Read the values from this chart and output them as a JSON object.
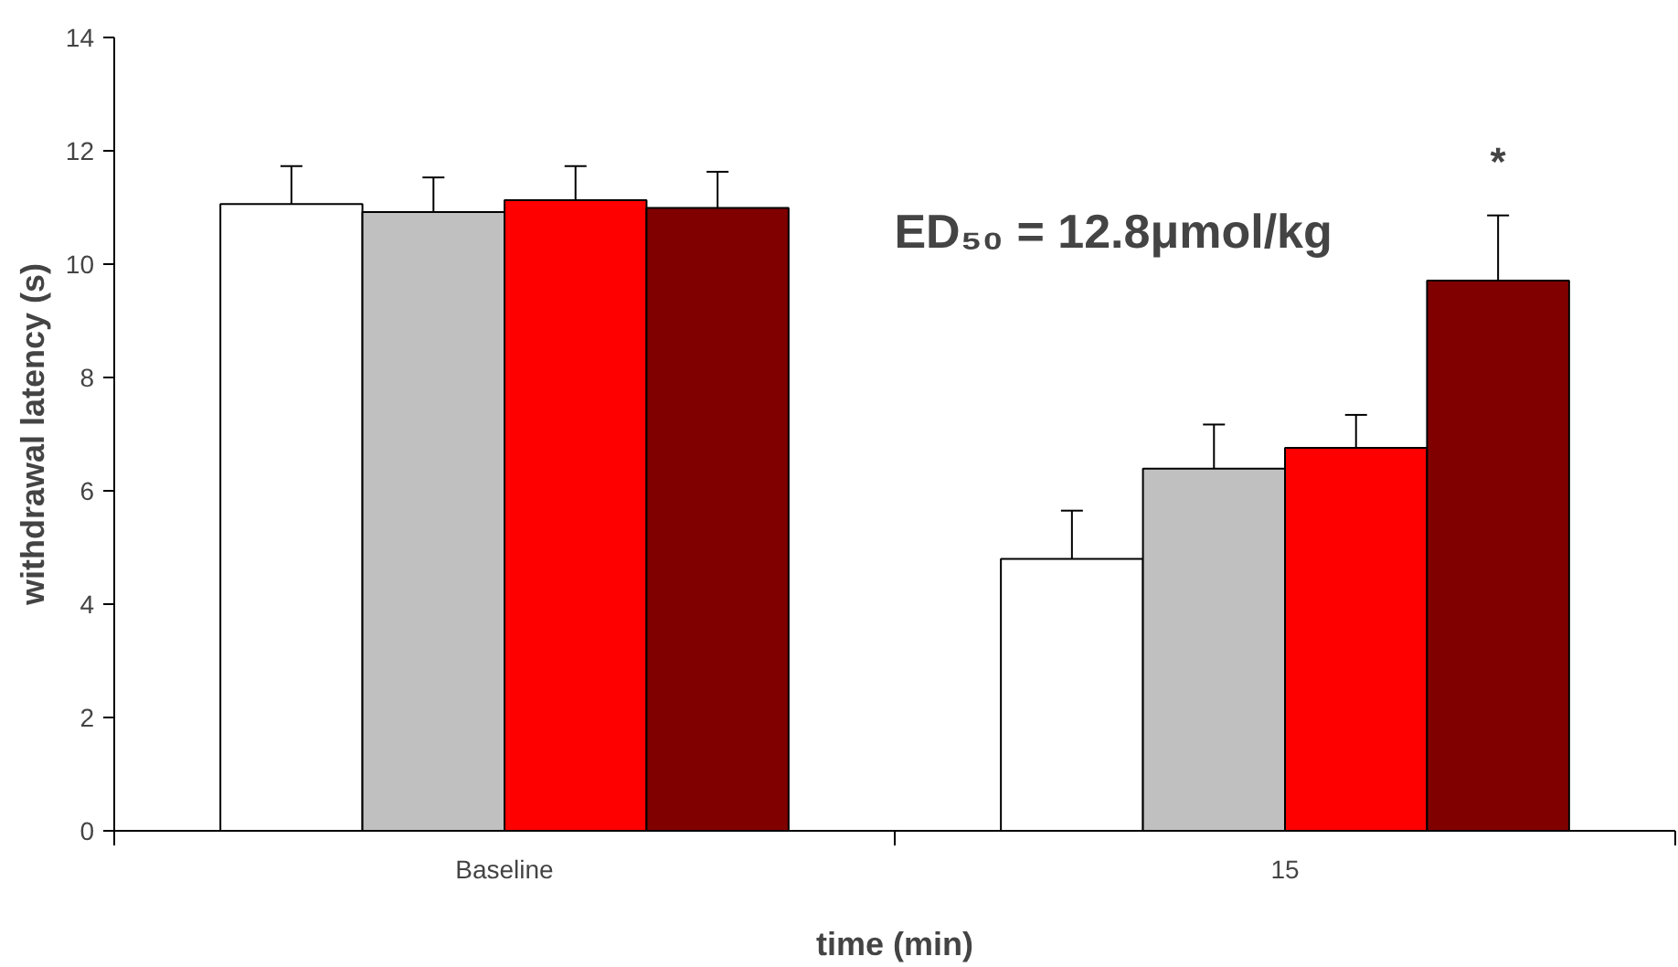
{
  "chart_data": {
    "type": "bar",
    "xlabel": "time (min)",
    "ylabel": "withdrawal latency (s)",
    "categories": [
      "Baseline",
      "15"
    ],
    "series": [
      {
        "color": "#ffffff",
        "values": [
          11.06,
          4.8
        ],
        "errors": [
          [
            11.06,
            11.73
          ],
          [
            4.8,
            5.65
          ]
        ]
      },
      {
        "color": "#c0c0c0",
        "values": [
          10.92,
          6.39
        ],
        "errors": [
          [
            10.92,
            11.53
          ],
          [
            6.39,
            7.17
          ]
        ]
      },
      {
        "color": "#ff0000",
        "values": [
          11.13,
          6.76
        ],
        "errors": [
          [
            11.13,
            11.73
          ],
          [
            6.76,
            7.34
          ]
        ]
      },
      {
        "color": "#800000",
        "values": [
          10.99,
          9.71
        ],
        "errors": [
          [
            10.99,
            11.63
          ],
          [
            9.71,
            10.86
          ]
        ]
      }
    ],
    "ylim": [
      0,
      14
    ],
    "yticks": [
      0,
      2,
      4,
      6,
      8,
      10,
      12,
      14
    ],
    "grid": false,
    "annotations": [
      "*",
      "ED₅₀ = 12.8μmol/kg"
    ]
  }
}
